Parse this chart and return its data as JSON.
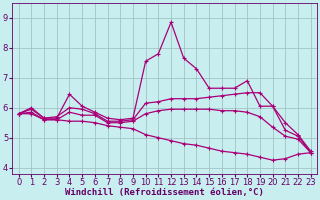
{
  "xlabel": "Windchill (Refroidissement éolien,°C)",
  "background_color": "#c8eef0",
  "line_color": "#aa0077",
  "grid_color": "#99bbbb",
  "xlim": [
    -0.5,
    23.5
  ],
  "ylim": [
    3.8,
    9.5
  ],
  "yticks": [
    4,
    5,
    6,
    7,
    8,
    9
  ],
  "xticks": [
    0,
    1,
    2,
    3,
    4,
    5,
    6,
    7,
    8,
    9,
    10,
    11,
    12,
    13,
    14,
    15,
    16,
    17,
    18,
    19,
    20,
    21,
    22,
    23
  ],
  "x": [
    0,
    1,
    2,
    3,
    4,
    5,
    6,
    7,
    8,
    9,
    10,
    11,
    12,
    13,
    14,
    15,
    16,
    17,
    18,
    19,
    20,
    21,
    22,
    23
  ],
  "line1": [
    5.8,
    6.0,
    5.65,
    5.65,
    6.45,
    6.05,
    5.85,
    5.65,
    5.6,
    5.65,
    7.55,
    7.8,
    8.85,
    7.65,
    7.3,
    6.65,
    6.65,
    6.65,
    6.9,
    6.05,
    6.05,
    5.25,
    5.05,
    4.5
  ],
  "line2": [
    5.8,
    5.95,
    5.65,
    5.7,
    6.0,
    5.95,
    5.8,
    5.55,
    5.55,
    5.6,
    6.15,
    6.2,
    6.3,
    6.3,
    6.3,
    6.35,
    6.4,
    6.45,
    6.5,
    6.5,
    6.05,
    5.5,
    5.1,
    4.55
  ],
  "line3": [
    5.8,
    5.85,
    5.6,
    5.6,
    5.85,
    5.75,
    5.75,
    5.5,
    5.5,
    5.55,
    5.8,
    5.9,
    5.95,
    5.95,
    5.95,
    5.95,
    5.9,
    5.9,
    5.85,
    5.7,
    5.35,
    5.05,
    4.95,
    4.5
  ],
  "line4": [
    5.8,
    5.8,
    5.6,
    5.6,
    5.55,
    5.55,
    5.5,
    5.4,
    5.35,
    5.3,
    5.1,
    5.0,
    4.9,
    4.8,
    4.75,
    4.65,
    4.55,
    4.5,
    4.45,
    4.35,
    4.25,
    4.3,
    4.45,
    4.5
  ],
  "fontsize_label": 6.5,
  "fontsize_tick": 6,
  "label_color": "#660066",
  "tick_color": "#660066"
}
